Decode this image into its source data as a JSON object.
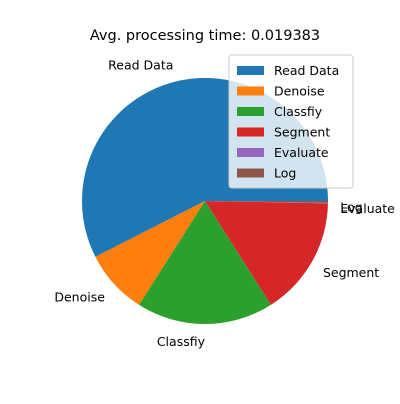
{
  "chart_data": {
    "type": "pie",
    "title": "Avg. processing time: 0.019383",
    "start_angle_deg": 0,
    "direction": "counterclockwise",
    "legend_location": "top-right",
    "slices": [
      {
        "label": "Read Data",
        "value": 57.5,
        "color": "#1f77b4"
      },
      {
        "label": "Denoise",
        "value": 8.5,
        "color": "#ff7f0e"
      },
      {
        "label": "Classfiy",
        "value": 18.0,
        "color": "#2ca02c"
      },
      {
        "label": "Segment",
        "value": 15.7,
        "color": "#d62728"
      },
      {
        "label": "Evaluate",
        "value": 0.05,
        "color": "#9467bd"
      },
      {
        "label": "Log",
        "value": 0.25,
        "color": "#8c564b"
      }
    ]
  }
}
